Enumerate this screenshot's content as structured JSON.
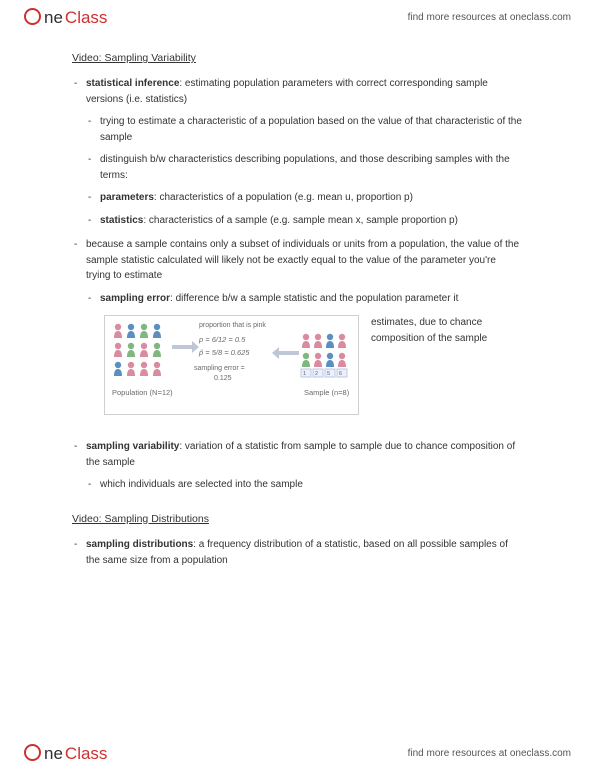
{
  "brand": {
    "part1": "ne",
    "part2": "Class"
  },
  "header_link": "find more resources at oneclass.com",
  "footer_link": "find more resources at oneclass.com",
  "sec1_title": "Video: Sampling Variability",
  "b1_term": "statistical inference",
  "b1_rest": ": estimating population parameters with correct corresponding sample versions (i.e. statistics)",
  "b1_s1": "trying to estimate a characteristic of a population based on the value of that characteristic of the sample",
  "b1_s2": "distinguish b/w characteristics describing populations, and those describing samples with the terms:",
  "b1_s3_term": "parameters",
  "b1_s3_rest": ": characteristics of a population (e.g. mean u, proportion p)",
  "b1_s4_term": "statistics",
  "b1_s4_rest": ": characteristics of a sample (e.g. sample mean x, sample proportion p)",
  "b2": "because a sample contains only a subset of individuals or units from a population, the value of the sample statistic calculated will likely not be exactly equal to the value of the parameter you're trying to estimate",
  "b2_s1_term": "sampling error",
  "b2_s1_rest": ": difference b/w a sample statistic and the population parameter it",
  "b2_s1_cont": "estimates, due to chance composition of the sample",
  "b3_term": "sampling variability",
  "b3_rest": ": variation of a statistic from sample to sample due to chance composition of the sample",
  "b3_s1": "which individuals are selected into the sample",
  "sec2_title": "Video: Sampling Distributions",
  "b4_term": "sampling distributions",
  "b4_rest": ": a frequency distribution of a statistic, based on all possible samples of the same size from a population",
  "diagram": {
    "pop_label": "Population (N=12)",
    "samp_label": "Sample (n=8)",
    "mid_title": "proportion that is pink",
    "mid_l1": "p = 6/12 = 0.5",
    "mid_l2": "p̂ = 5/8 = 0.625",
    "mid_l3": "sampling error = 0.125",
    "colors": {
      "pink": "#d98ba0",
      "blue": "#5a8fbf",
      "green": "#7fb77e",
      "arrow": "#bfc7d6",
      "text": "#6a6a6a",
      "border": "#cfcfcf"
    }
  }
}
